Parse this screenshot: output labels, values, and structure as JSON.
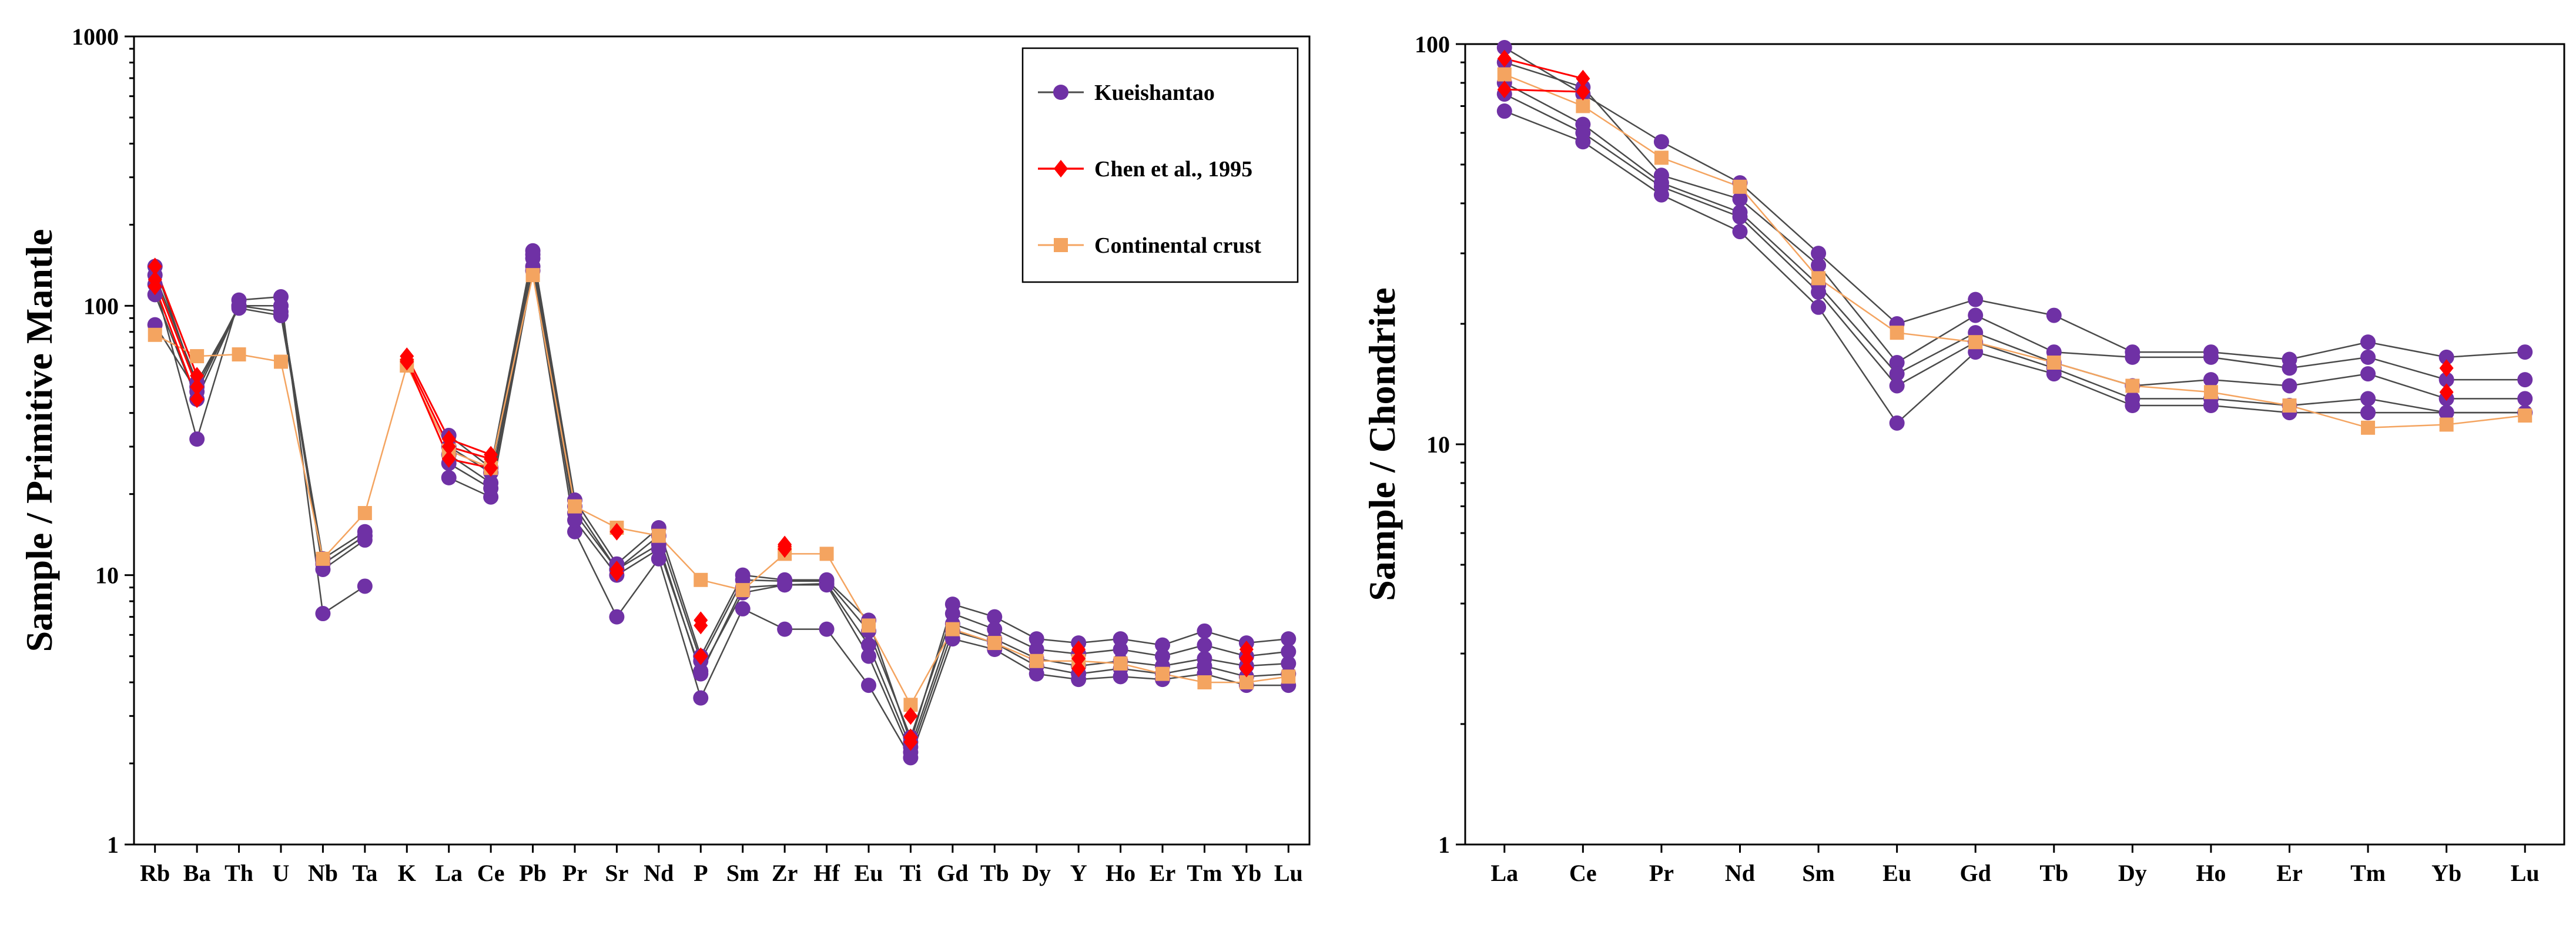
{
  "colors": {
    "kueishantao": "#6F31A5",
    "kueishantao_line": "#4a4a4a",
    "chen": "#FF0000",
    "crust": "#F4A460"
  },
  "chart_data": [
    {
      "type": "line",
      "scale": "log",
      "ylabel": "Sample / Primitive Mantle",
      "ylim": [
        1,
        1000
      ],
      "yticks": [
        "1",
        "10",
        "100",
        "1000"
      ],
      "categories": [
        "Rb",
        "Ba",
        "Th",
        "U",
        "Nb",
        "Ta",
        "K",
        "La",
        "Ce",
        "Pb",
        "Pr",
        "Sr",
        "Nd",
        "P",
        "Sm",
        "Zr",
        "Hf",
        "Eu",
        "Ti",
        "Gd",
        "Tb",
        "Dy",
        "Y",
        "Ho",
        "Er",
        "Tm",
        "Yb",
        "Lu"
      ],
      "legend": {
        "position": "top-right",
        "entries": [
          "Kueishantao",
          "Chen et al., 1995",
          "Continental crust"
        ]
      },
      "series": [
        {
          "name": "Kueishantao",
          "group": "kueishantao",
          "values": [
            140,
            50,
            100,
            100,
            11,
            14,
            null,
            33,
            25,
            160,
            19,
            11,
            15,
            5,
            10,
            9.6,
            9.6,
            6.8,
            2.4,
            7.8,
            7,
            5.8,
            5.6,
            5.8,
            5.5,
            6.2,
            5.6,
            5.8
          ]
        },
        {
          "name": "Kueishantao",
          "group": "kueishantao",
          "values": [
            120,
            32,
            105,
            108,
            7.2,
            9.1,
            null,
            23,
            19.5,
            135,
            14.5,
            7,
            11.5,
            3.5,
            7.5,
            6.3,
            6.3,
            3.9,
            2.1,
            5.8,
            5.3,
            4.3,
            4.1,
            4.2,
            4.1,
            4.3,
            3.9,
            3.9
          ]
        },
        {
          "name": "Kueishantao",
          "group": "kueishantao",
          "values": [
            85,
            48,
            100,
            95,
            10.5,
            13.5,
            null,
            28,
            22,
            150,
            17,
            10.5,
            13,
            4.3,
            9,
            9.2,
            9.3,
            5.5,
            2.3,
            6.6,
            5.8,
            4.9,
            4.6,
            4.8,
            4.6,
            4.9,
            4.6,
            4.7
          ]
        },
        {
          "name": "Kueishantao",
          "group": "kueishantao",
          "values": [
            130,
            52,
            98,
            92,
            11.5,
            14.5,
            null,
            30,
            24,
            155,
            18,
            10.5,
            14,
            4.8,
            9.6,
            9.5,
            9.5,
            6.2,
            2.5,
            7.2,
            6.3,
            5.3,
            5.1,
            5.3,
            5.0,
            5.5,
            5.0,
            5.2
          ]
        },
        {
          "name": "Kueishantao",
          "group": "kueishantao",
          "values": [
            110,
            45,
            100,
            100,
            11,
            14,
            null,
            26,
            21,
            140,
            16,
            10,
            12.5,
            4.4,
            8.6,
            9.2,
            9.2,
            5.0,
            2.2,
            6.2,
            5.6,
            4.6,
            4.3,
            4.5,
            4.3,
            4.6,
            4.2,
            4.3
          ]
        },
        {
          "name": "Chen et al., 1995",
          "group": "chen",
          "values": [
            125,
            50,
            null,
            null,
            null,
            null,
            63,
            30,
            27,
            null,
            null,
            10.5,
            null,
            6.5,
            null,
            12.5,
            null,
            null,
            2.5,
            null,
            null,
            null,
            4.9,
            null,
            null,
            null,
            4.9,
            null
          ]
        },
        {
          "name": "Chen et al., 1995",
          "group": "chen",
          "values": [
            118,
            45,
            null,
            null,
            null,
            null,
            62,
            27,
            25,
            null,
            null,
            10.2,
            null,
            5,
            null,
            13,
            null,
            null,
            3,
            null,
            null,
            null,
            4.5,
            null,
            null,
            null,
            4.5,
            null
          ]
        },
        {
          "name": "Chen et al., 1995",
          "group": "chen",
          "values": [
            140,
            55,
            null,
            null,
            null,
            null,
            65,
            32,
            28,
            null,
            null,
            14.5,
            null,
            6.8,
            null,
            12.8,
            null,
            null,
            2.4,
            null,
            null,
            null,
            5.3,
            null,
            null,
            null,
            5.3,
            null
          ]
        },
        {
          "name": "Continental crust",
          "group": "crust",
          "values": [
            78,
            65,
            66,
            62,
            11.5,
            17,
            60,
            29,
            25,
            130,
            18,
            15,
            14,
            9.6,
            8.8,
            12,
            12,
            6.5,
            3.3,
            6.3,
            5.6,
            4.8,
            4.8,
            4.7,
            4.3,
            4.0,
            4.0,
            4.2
          ]
        }
      ]
    },
    {
      "type": "line",
      "scale": "log",
      "ylabel": "Sample / Chondrite",
      "ylim": [
        1,
        100
      ],
      "yticks": [
        "1",
        "10",
        "100"
      ],
      "categories": [
        "La",
        "Ce",
        "Pr",
        "Nd",
        "Sm",
        "Eu",
        "Gd",
        "Tb",
        "Dy",
        "Ho",
        "Er",
        "Tm",
        "Yb",
        "Lu"
      ],
      "series": [
        {
          "name": "Kueishantao",
          "group": "kueishantao",
          "values": [
            98,
            75,
            57,
            45,
            30,
            20,
            23,
            21,
            17,
            17,
            16.3,
            18,
            16.5,
            17
          ]
        },
        {
          "name": "Kueishantao",
          "group": "kueishantao",
          "values": [
            68,
            57,
            42,
            34,
            22,
            11.3,
            17,
            15,
            12.5,
            12.5,
            12,
            12,
            12,
            12
          ]
        },
        {
          "name": "Kueishantao",
          "group": "kueishantao",
          "values": [
            90,
            78,
            47,
            41,
            28,
            16,
            21,
            17,
            16.5,
            16.5,
            15.5,
            16.5,
            14.5,
            14.5
          ]
        },
        {
          "name": "Kueishantao",
          "group": "kueishantao",
          "values": [
            80,
            63,
            45,
            38,
            25,
            15,
            19,
            16,
            14,
            14.5,
            14,
            15,
            13,
            13
          ]
        },
        {
          "name": "Kueishantao",
          "group": "kueishantao",
          "values": [
            75,
            60,
            44,
            37,
            24,
            14,
            18,
            15.5,
            13,
            13,
            12.5,
            13,
            12,
            12
          ]
        },
        {
          "name": "Chen et al., 1995",
          "group": "chen",
          "values": [
            92,
            82,
            null,
            null,
            null,
            null,
            null,
            null,
            null,
            null,
            null,
            null,
            15.5,
            null
          ]
        },
        {
          "name": "Chen et al., 1995",
          "group": "chen",
          "values": [
            77,
            76,
            null,
            null,
            null,
            null,
            null,
            null,
            null,
            null,
            null,
            null,
            13.5,
            null
          ]
        },
        {
          "name": "Continental crust",
          "group": "crust",
          "values": [
            84,
            70,
            52,
            44,
            26,
            19,
            18,
            16,
            14,
            13.5,
            12.5,
            11,
            11.2,
            11.8
          ]
        }
      ]
    }
  ]
}
